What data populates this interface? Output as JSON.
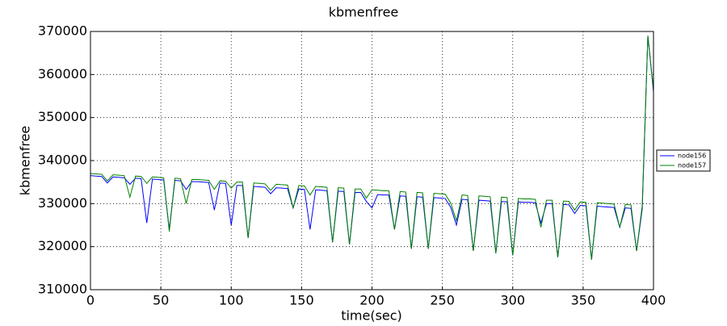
{
  "chart_data": {
    "type": "line",
    "title": "kbmenfree",
    "xlabel": "time(sec)",
    "ylabel": "kbmenfree",
    "x": [
      0,
      4,
      8,
      12,
      16,
      20,
      24,
      28,
      32,
      36,
      40,
      44,
      48,
      52,
      56,
      60,
      64,
      68,
      72,
      76,
      80,
      84,
      88,
      92,
      96,
      100,
      104,
      108,
      112,
      116,
      120,
      124,
      128,
      132,
      136,
      140,
      144,
      148,
      152,
      156,
      160,
      164,
      168,
      172,
      176,
      180,
      184,
      188,
      192,
      196,
      200,
      204,
      208,
      212,
      216,
      220,
      224,
      228,
      232,
      236,
      240,
      244,
      248,
      252,
      256,
      260,
      264,
      268,
      272,
      276,
      280,
      284,
      288,
      292,
      296,
      300,
      304,
      308,
      312,
      316,
      320,
      324,
      328,
      332,
      336,
      340,
      344,
      348,
      352,
      356,
      360,
      364,
      368,
      372,
      376,
      380,
      384,
      388,
      392,
      396,
      400
    ],
    "series": [
      {
        "name": "node156",
        "color": "#0000ff",
        "values": [
          336500,
          336400,
          336300,
          334800,
          336200,
          336100,
          336000,
          334500,
          335900,
          335800,
          325500,
          335700,
          335600,
          335500,
          324000,
          335400,
          335300,
          333300,
          335100,
          335100,
          335000,
          334900,
          328500,
          334800,
          334700,
          325000,
          334200,
          334200,
          322000,
          334000,
          333900,
          333800,
          332300,
          333700,
          333600,
          333500,
          329000,
          333400,
          333300,
          324000,
          333200,
          333100,
          333000,
          321000,
          332900,
          332800,
          320500,
          332600,
          332600,
          330500,
          329000,
          332100,
          332000,
          332000,
          324000,
          331800,
          331700,
          319500,
          331600,
          331500,
          319500,
          331400,
          331300,
          331200,
          329100,
          325000,
          331000,
          330900,
          319000,
          330800,
          330700,
          330600,
          318500,
          330500,
          330400,
          318000,
          330400,
          330300,
          330300,
          330200,
          325500,
          330000,
          330000,
          317500,
          329800,
          329700,
          327700,
          329600,
          329500,
          317000,
          329400,
          329300,
          329200,
          329100,
          324500,
          329000,
          328900,
          319000,
          328800,
          369000,
          356000
        ]
      },
      {
        "name": "node157",
        "color": "#008000",
        "values": [
          337000,
          336900,
          336800,
          335300,
          336700,
          336600,
          336500,
          331500,
          336400,
          336300,
          334700,
          336200,
          336100,
          336000,
          323500,
          335900,
          335800,
          330000,
          335600,
          335600,
          335500,
          335400,
          333300,
          335300,
          335200,
          333600,
          335000,
          335000,
          322000,
          334800,
          334700,
          334600,
          333100,
          334500,
          334400,
          334300,
          329000,
          334200,
          334100,
          332000,
          334000,
          333900,
          333800,
          321000,
          333700,
          333600,
          320500,
          333400,
          333400,
          331300,
          333200,
          333100,
          333000,
          333000,
          324000,
          332800,
          332700,
          319500,
          332600,
          332500,
          319500,
          332400,
          332300,
          332200,
          330100,
          326000,
          332000,
          331900,
          319000,
          331800,
          331700,
          331600,
          318500,
          331500,
          331400,
          318000,
          331200,
          331100,
          331100,
          331000,
          324500,
          330800,
          330800,
          317500,
          330600,
          330500,
          328500,
          330400,
          330300,
          317000,
          330200,
          330100,
          330000,
          329900,
          324500,
          329800,
          329700,
          319000,
          329600,
          369000,
          356500
        ]
      }
    ],
    "xlim": [
      0,
      400
    ],
    "xticks": [
      0,
      50,
      100,
      150,
      200,
      250,
      300,
      350,
      400
    ],
    "ylim": [
      310000,
      370000
    ],
    "yticks": [
      310000,
      320000,
      330000,
      340000,
      350000,
      360000,
      370000
    ],
    "grid": true,
    "legend": "right"
  }
}
